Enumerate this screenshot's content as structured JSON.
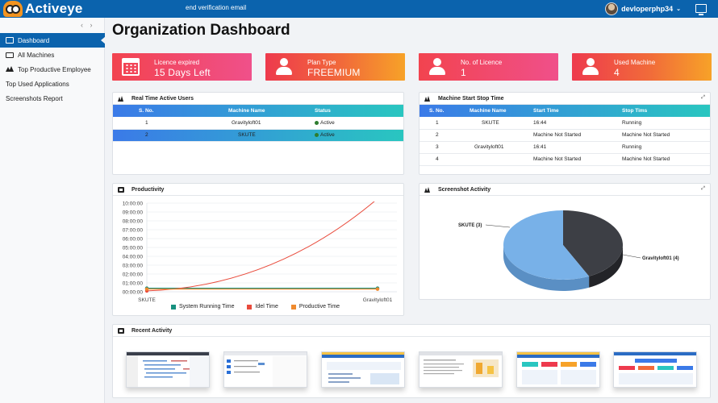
{
  "header": {
    "app_name": "Activeye",
    "notice": "end verification email",
    "username": "devloperphp34"
  },
  "sidebar": {
    "items": [
      {
        "label": "Dashboard",
        "icon": "dashboard-icon",
        "active": true
      },
      {
        "label": "All Machines",
        "icon": "monitor-icon"
      },
      {
        "label": "Top Productive Employee",
        "icon": "peaks-icon"
      },
      {
        "label": "Top Used Applications"
      },
      {
        "label": "Screenshots Report"
      }
    ]
  },
  "page_title": "Organization Dashboard",
  "stats": [
    {
      "label": "Licence expired",
      "value": "15 Days Left",
      "icon": "calendar-icon"
    },
    {
      "label": "Plan Type",
      "value": "FREEMIUM",
      "icon": "user-icon"
    },
    {
      "label": "No. of Licence",
      "value": "1",
      "icon": "user-icon"
    },
    {
      "label": "Used Machine",
      "value": "4",
      "icon": "user-icon"
    }
  ],
  "realtime": {
    "title": "Real Time Active Users",
    "columns": [
      "S. No.",
      "Machine Name",
      "Status"
    ],
    "rows": [
      {
        "sno": "1",
        "machine": "Gravityloft01",
        "status": "Active"
      },
      {
        "sno": "2",
        "machine": "SKUTE",
        "status": "Active"
      }
    ]
  },
  "startstop": {
    "title": "Machine Start Stop Time",
    "columns": [
      "S. No.",
      "Machine Name",
      "Start Time",
      "Stop Tims"
    ],
    "rows": [
      {
        "sno": "1",
        "machine": "SKUTE",
        "start": "16:44",
        "stop": "Running"
      },
      {
        "sno": "2",
        "machine": "",
        "start": "Machine Not Started",
        "stop": "Machine Not Started"
      },
      {
        "sno": "3",
        "machine": "Gravityloft01",
        "start": "16:41",
        "stop": "Running"
      },
      {
        "sno": "4",
        "machine": "",
        "start": "Machine Not Started",
        "stop": "Machine Not Started"
      }
    ]
  },
  "productivity": {
    "title": "Productivity",
    "legend": [
      "System Running Time",
      "Idel Time",
      "Productive Time"
    ],
    "colors": {
      "running": "#17917f",
      "idle": "#e94b3c",
      "productive": "#ef8a2e"
    }
  },
  "chart_data": [
    {
      "type": "line",
      "title": "Productivity",
      "categories": [
        "SKUTE",
        "Gravityloft01"
      ],
      "y_ticks": [
        "00:00:00",
        "01:00:00",
        "02:00:00",
        "03:00:00",
        "04:00:00",
        "05:00:00",
        "06:00:00",
        "07:00:00",
        "08:00:00",
        "09:00:00",
        "10:00:00"
      ],
      "ylim": [
        0,
        10
      ],
      "y_unit": "hours",
      "grid": true,
      "legend_position": "bottom",
      "series": [
        {
          "name": "System Running Time",
          "values": [
            0.4,
            0.4
          ]
        },
        {
          "name": "Idel Time",
          "values": [
            0.1,
            10.5
          ]
        },
        {
          "name": "Productive Time",
          "values": [
            0.3,
            0.3
          ]
        }
      ]
    },
    {
      "type": "pie",
      "title": "Screenshot Activity",
      "labels": [
        "SKUTE (3)",
        "Gravityloft01 (4)"
      ],
      "values": [
        3,
        4
      ],
      "colors": [
        "#3d3f45",
        "#78b1e8"
      ]
    }
  ],
  "screenshot": {
    "title": "Screenshot Activity",
    "labels": [
      "SKUTE (3)",
      "Gravityloft01 (4)"
    ]
  },
  "recent": {
    "title": "Recent Activity"
  }
}
